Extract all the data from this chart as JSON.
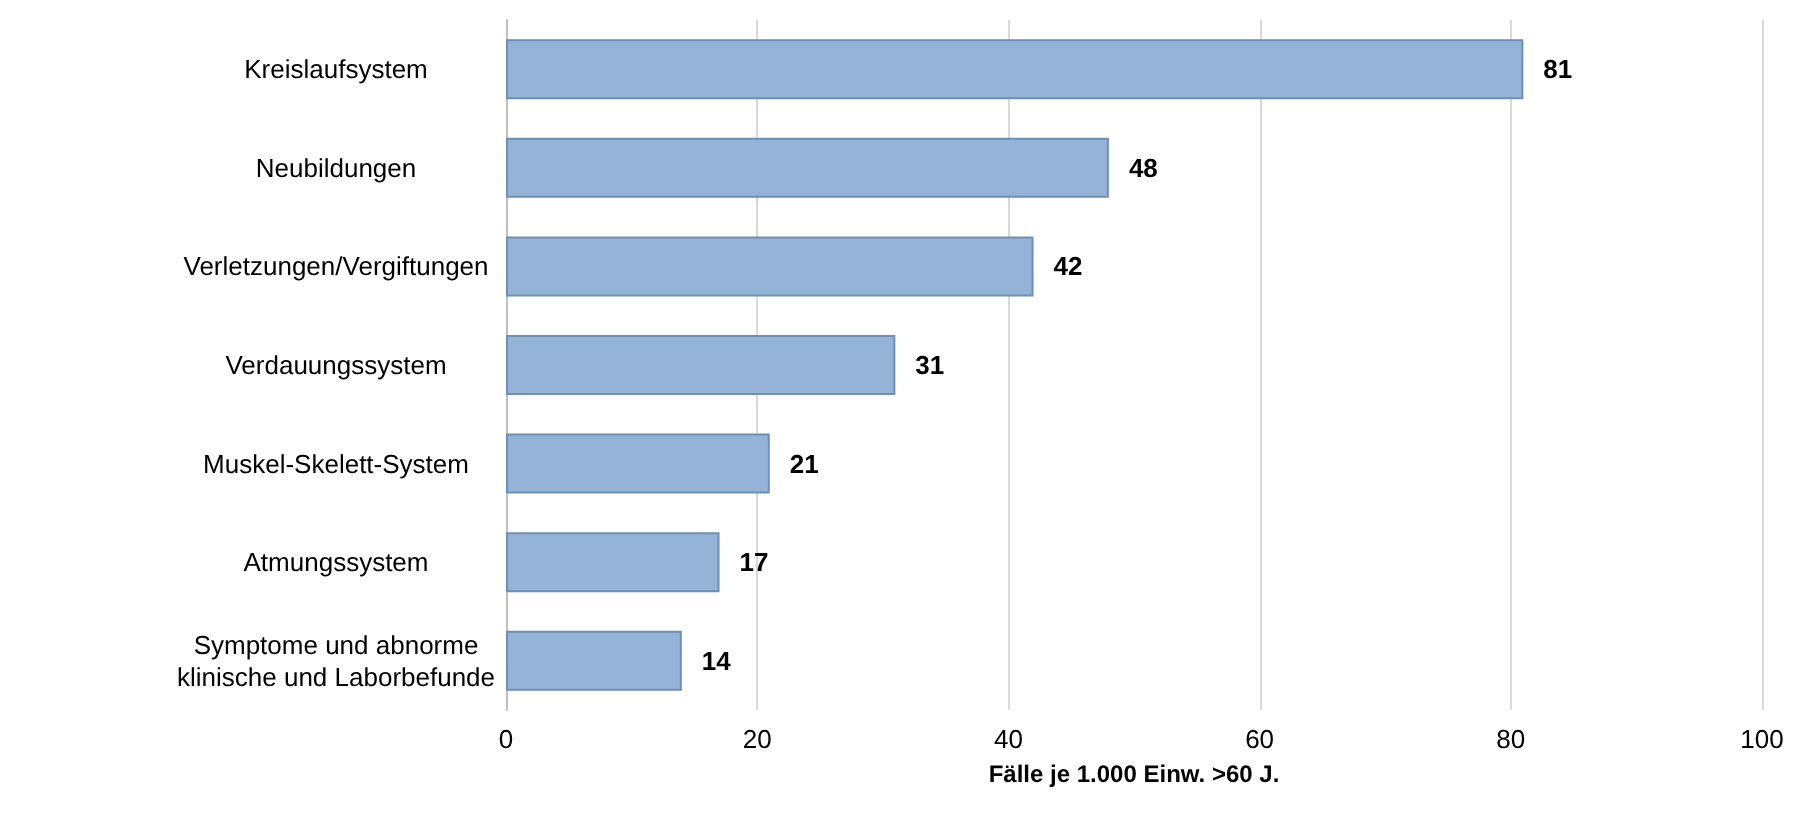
{
  "chart_data": {
    "type": "bar",
    "orientation": "horizontal",
    "xlabel": "Fälle je 1.000 Einw. >60 J.",
    "categories": [
      "Kreislaufsystem",
      "Neubildungen",
      "Verletzungen/Vergiftungen",
      "Verdauungssystem",
      "Muskel-Skelett-System",
      "Atmungssystem",
      "Symptome und abnorme\nklinische und Laborbefunde"
    ],
    "values": [
      81,
      48,
      42,
      31,
      21,
      17,
      14
    ],
    "color": "#95b3d7",
    "xlim": [
      0,
      100
    ],
    "xticks": [
      0,
      20,
      40,
      60,
      80,
      100
    ],
    "grid": "x",
    "data_labels": true
  }
}
